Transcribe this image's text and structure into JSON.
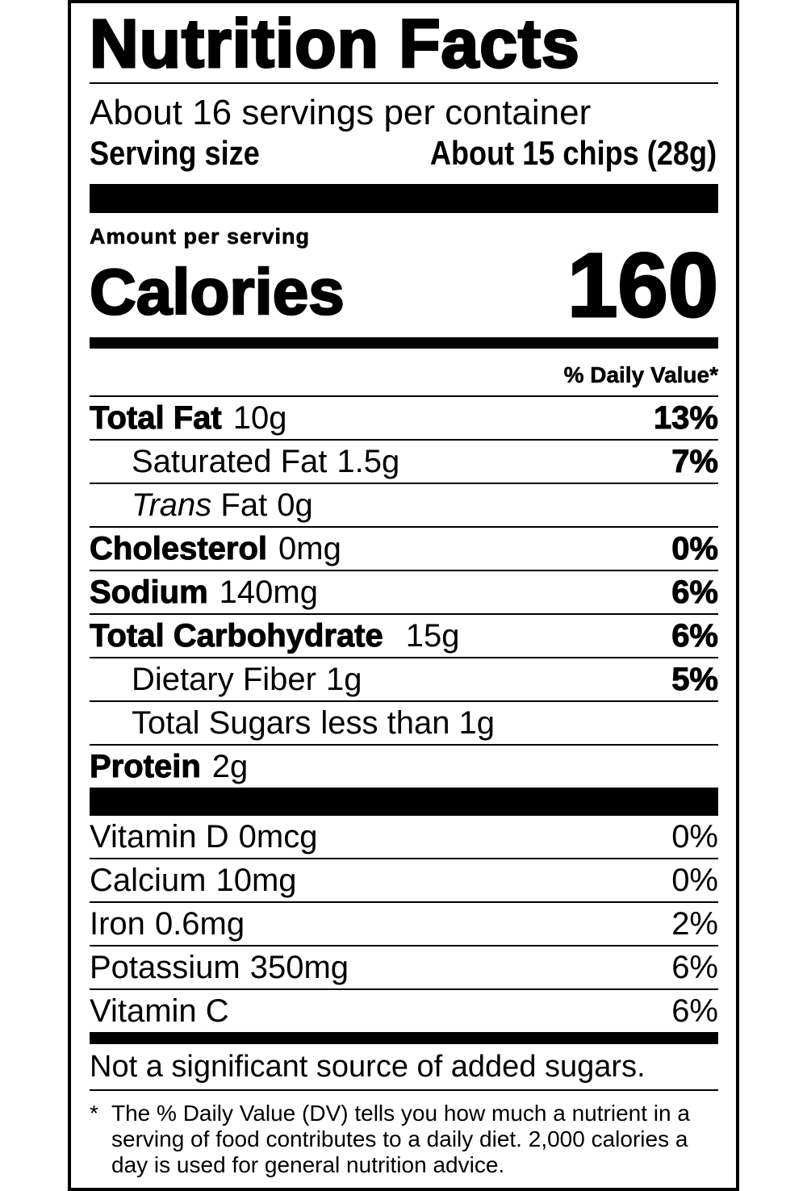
{
  "title": "Nutrition Facts",
  "servings_per_container": "About 16 servings per container",
  "serving_size_label": "Serving size",
  "serving_size_value": "About 15 chips (28g)",
  "amount_per_serving": "Amount per serving",
  "calories_label": "Calories",
  "calories_value": "160",
  "daily_value_header": "% Daily Value*",
  "nutrients": [
    {
      "name": "Total Fat",
      "amount": "10g",
      "dv": "13%"
    },
    {
      "name": "Saturated Fat",
      "amount": "1.5g",
      "dv": "7%"
    },
    {
      "name_italic": "Trans",
      "name": "Fat",
      "amount": "0g",
      "dv": ""
    },
    {
      "name": "Cholesterol",
      "amount": "0mg",
      "dv": "0%"
    },
    {
      "name": "Sodium",
      "amount": "140mg",
      "dv": "6%"
    },
    {
      "name": "Total Carbohydrate",
      "amount": "15g",
      "dv": "6%"
    },
    {
      "name": "Dietary Fiber",
      "amount": "1g",
      "dv": "5%"
    },
    {
      "name": "Total Sugars",
      "amount": "less than 1g",
      "dv": ""
    },
    {
      "name": "Protein",
      "amount": "2g",
      "dv": ""
    }
  ],
  "vitamins": [
    {
      "name": "Vitamin D",
      "amount": "0mcg",
      "dv": "0%"
    },
    {
      "name": "Calcium",
      "amount": "10mg",
      "dv": "0%"
    },
    {
      "name": "Iron",
      "amount": "0.6mg",
      "dv": "2%"
    },
    {
      "name": "Potassium",
      "amount": "350mg",
      "dv": "6%"
    },
    {
      "name": "Vitamin C",
      "amount": "",
      "dv": "6%"
    }
  ],
  "added_sugars_note": "Not a significant source of added sugars.",
  "footnote_star": "*",
  "footnote": "The % Daily Value (DV) tells you how much a nutrient in a serving of food contributes to a daily diet. 2,000 calories a day is used for general nutrition advice."
}
